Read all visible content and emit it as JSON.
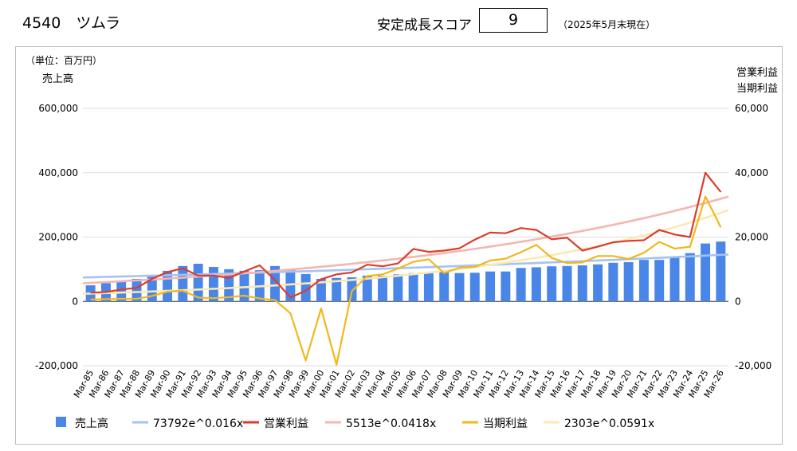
{
  "header": {
    "title": "4540　ツムラ",
    "score_label": "安定成長スコア",
    "score_value": "9",
    "as_of": "（2025年5月末現在）"
  },
  "chart_data": {
    "type": "bar",
    "unit_label": "（単位：百万円）",
    "left_axis_title": "売上高",
    "right_axis_title_1": "営業利益",
    "right_axis_title_2": "当期利益",
    "categories": [
      "Mar-85",
      "Mar-86",
      "Mar-87",
      "Mar-88",
      "Mar-89",
      "Mar-90",
      "Mar-91",
      "Mar-92",
      "Mar-93",
      "Mar-94",
      "Mar-95",
      "Mar-96",
      "Mar-97",
      "Mar-98",
      "Mar-99",
      "Mar-00",
      "Mar-01",
      "Mar-02",
      "Mar-03",
      "Mar-04",
      "Mar-05",
      "Mar-06",
      "Mar-07",
      "Mar-08",
      "Mar-09",
      "Mar-10",
      "Mar-11",
      "Mar-12",
      "Mar-13",
      "Mar-14",
      "Mar-15",
      "Mar-16",
      "Mar-17",
      "Mar-18",
      "Mar-19",
      "Mar-20",
      "Mar-21",
      "Mar-22",
      "Mar-23",
      "Mar-24",
      "Mar-25",
      "Mar-26"
    ],
    "left_axis": {
      "min": -200000,
      "max": 600000,
      "ticks": [
        -200000,
        0,
        200000,
        400000,
        600000
      ],
      "tick_labels": [
        "-200,000",
        "0",
        "200,000",
        "400,000",
        "600,000"
      ]
    },
    "right_axis": {
      "min": -20000,
      "max": 60000,
      "ticks": [
        -20000,
        0,
        20000,
        40000,
        60000
      ],
      "tick_labels": [
        "-20,000",
        "0",
        "20,000",
        "40,000",
        "60,000"
      ]
    },
    "series": [
      {
        "name": "売上高",
        "type": "bar",
        "axis": "left",
        "color": "#4a86e8",
        "values": [
          50000,
          57000,
          64000,
          70000,
          82000,
          95000,
          110000,
          117000,
          107000,
          100000,
          95000,
          97000,
          110000,
          100000,
          85000,
          70000,
          73000,
          75000,
          80000,
          80000,
          84000,
          88000,
          88000,
          93000,
          88000,
          89000,
          93000,
          93000,
          104000,
          106000,
          109000,
          110000,
          112000,
          115000,
          120000,
          122000,
          129000,
          129000,
          140000,
          150000,
          180000,
          186000
        ]
      },
      {
        "name": "73792e^0.016x",
        "type": "trend",
        "axis": "left",
        "color": "#a4c2f4",
        "a": 73792,
        "b": 0.016
      },
      {
        "name": "営業利益",
        "type": "line",
        "axis": "right",
        "color": "#dc3d2a",
        "values": [
          2700,
          2900,
          3700,
          4200,
          7000,
          9100,
          10300,
          8000,
          8000,
          7300,
          9300,
          11200,
          6600,
          1200,
          3300,
          6900,
          8400,
          9000,
          11400,
          10900,
          11800,
          16300,
          15400,
          15800,
          16500,
          19200,
          21400,
          21200,
          22800,
          22200,
          19300,
          19800,
          15800,
          17000,
          18400,
          18800,
          19000,
          22200,
          20800,
          20000,
          40000,
          34000
        ]
      },
      {
        "name": "5513e^0.0418x",
        "type": "trend",
        "axis": "right",
        "color": "#f4b6b0",
        "a": 5513,
        "b": 0.0418
      },
      {
        "name": "当期利益",
        "type": "line",
        "axis": "right",
        "color": "#f1b81a",
        "values": [
          600,
          700,
          800,
          800,
          1700,
          3000,
          3300,
          1200,
          1000,
          1300,
          1800,
          900,
          400,
          -3700,
          -18400,
          -2200,
          -19700,
          3200,
          7900,
          8400,
          10200,
          12300,
          13100,
          8800,
          10500,
          10700,
          12700,
          13300,
          15300,
          17600,
          13500,
          11900,
          12100,
          14100,
          14100,
          13200,
          15100,
          18500,
          16400,
          17000,
          32600,
          23000
        ]
      },
      {
        "name": "2303e^0.0591x",
        "type": "trend",
        "axis": "right",
        "color": "#fce8b2",
        "a": 2303,
        "b": 0.0591
      }
    ],
    "legend_position": "bottom",
    "grid": true
  }
}
